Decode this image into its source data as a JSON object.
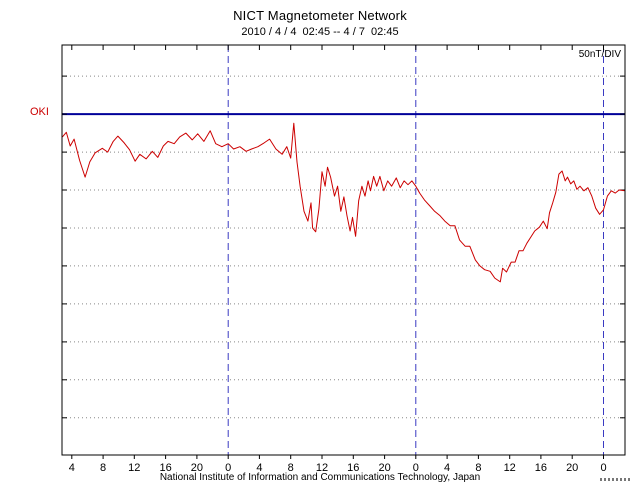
{
  "header": {
    "title": "NICT Magnetometer Network",
    "subtitle": "2010 / 4 / 4  02:45 -- 4 / 7  02:45"
  },
  "plot": {
    "scale_label": "50nT/DIV",
    "station_label": "OKI"
  },
  "footer": {
    "credit": "National Institute of Information and Communications Technology, Japan"
  },
  "colors": {
    "trace": "#cc0000",
    "baseline": "#000099",
    "day_line": "#3a3ac2",
    "grid": "#888888",
    "frame": "#000000"
  },
  "chart_data": {
    "type": "line",
    "title": "NICT Magnetometer Network",
    "subtitle": "2010 / 4 / 4  02:45 -- 4 / 7  02:45",
    "station": "OKI",
    "y_scale_label": "50nT/DIV",
    "y_division_nT": 50,
    "y_unit": "nT relative to OKI baseline",
    "x_unit": "hour of day, 2010-04-04 02:45 to 2010-04-07 02:45",
    "x_range": [
      2.75,
      74.75
    ],
    "ylim": [
      -449,
      91
    ],
    "grid_nT": [
      50,
      -50,
      -100,
      -150,
      -200,
      -250,
      -300,
      -350,
      -400
    ],
    "day_boundaries_h": [
      24,
      48,
      72
    ],
    "legend": "none",
    "x_ticks": [
      {
        "h": 4,
        "label": "4"
      },
      {
        "h": 8,
        "label": "8"
      },
      {
        "h": 12,
        "label": "12"
      },
      {
        "h": 16,
        "label": "16"
      },
      {
        "h": 20,
        "label": "20"
      },
      {
        "h": 24,
        "label": "0"
      },
      {
        "h": 28,
        "label": "4"
      },
      {
        "h": 32,
        "label": "8"
      },
      {
        "h": 36,
        "label": "12"
      },
      {
        "h": 40,
        "label": "16"
      },
      {
        "h": 44,
        "label": "20"
      },
      {
        "h": 48,
        "label": "0"
      },
      {
        "h": 52,
        "label": "4"
      },
      {
        "h": 56,
        "label": "8"
      },
      {
        "h": 60,
        "label": "12"
      },
      {
        "h": 64,
        "label": "16"
      },
      {
        "h": 68,
        "label": "20"
      },
      {
        "h": 72,
        "label": "0"
      }
    ],
    "series": [
      {
        "name": "OKI",
        "points": [
          [
            2.8,
            -30
          ],
          [
            3.3,
            -24
          ],
          [
            3.8,
            -42
          ],
          [
            4.3,
            -33
          ],
          [
            5.0,
            -61
          ],
          [
            5.7,
            -83
          ],
          [
            6.3,
            -63
          ],
          [
            7.0,
            -51
          ],
          [
            7.9,
            -45
          ],
          [
            8.6,
            -50
          ],
          [
            9.3,
            -36
          ],
          [
            9.9,
            -29
          ],
          [
            10.7,
            -38
          ],
          [
            11.4,
            -47
          ],
          [
            12.1,
            -62
          ],
          [
            12.7,
            -53
          ],
          [
            13.5,
            -59
          ],
          [
            14.3,
            -49
          ],
          [
            15.0,
            -57
          ],
          [
            15.7,
            -42
          ],
          [
            16.3,
            -36
          ],
          [
            17.1,
            -39
          ],
          [
            17.8,
            -30
          ],
          [
            18.6,
            -25
          ],
          [
            19.4,
            -34
          ],
          [
            20.1,
            -26
          ],
          [
            20.9,
            -36
          ],
          [
            21.7,
            -22
          ],
          [
            22.4,
            -39
          ],
          [
            23.2,
            -43
          ],
          [
            24.0,
            -39
          ],
          [
            24.7,
            -46
          ],
          [
            25.5,
            -43
          ],
          [
            26.3,
            -49
          ],
          [
            27.0,
            -46
          ],
          [
            27.8,
            -43
          ],
          [
            28.6,
            -38
          ],
          [
            29.3,
            -33
          ],
          [
            30.1,
            -46
          ],
          [
            30.9,
            -53
          ],
          [
            31.5,
            -43
          ],
          [
            32.0,
            -58
          ],
          [
            32.4,
            -12
          ],
          [
            32.8,
            -63
          ],
          [
            33.2,
            -95
          ],
          [
            33.7,
            -128
          ],
          [
            34.2,
            -141
          ],
          [
            34.6,
            -117
          ],
          [
            34.8,
            -150
          ],
          [
            35.2,
            -155
          ],
          [
            35.6,
            -125
          ],
          [
            36.0,
            -76
          ],
          [
            36.4,
            -95
          ],
          [
            36.7,
            -70
          ],
          [
            37.1,
            -83
          ],
          [
            37.6,
            -108
          ],
          [
            38.0,
            -95
          ],
          [
            38.4,
            -128
          ],
          [
            38.8,
            -109
          ],
          [
            39.2,
            -134
          ],
          [
            39.6,
            -154
          ],
          [
            39.9,
            -136
          ],
          [
            40.3,
            -161
          ],
          [
            40.7,
            -114
          ],
          [
            41.1,
            -95
          ],
          [
            41.5,
            -108
          ],
          [
            41.9,
            -88
          ],
          [
            42.2,
            -101
          ],
          [
            42.6,
            -82
          ],
          [
            43.0,
            -95
          ],
          [
            43.4,
            -82
          ],
          [
            43.9,
            -101
          ],
          [
            44.4,
            -88
          ],
          [
            44.9,
            -95
          ],
          [
            45.5,
            -84
          ],
          [
            46.0,
            -97
          ],
          [
            46.5,
            -88
          ],
          [
            47.0,
            -93
          ],
          [
            47.5,
            -88
          ],
          [
            48.0,
            -95
          ],
          [
            48.5,
            -104
          ],
          [
            49.1,
            -113
          ],
          [
            49.8,
            -121
          ],
          [
            50.4,
            -128
          ],
          [
            51.1,
            -134
          ],
          [
            51.7,
            -141
          ],
          [
            52.4,
            -147
          ],
          [
            53.0,
            -147
          ],
          [
            53.6,
            -166
          ],
          [
            54.3,
            -174
          ],
          [
            54.9,
            -174
          ],
          [
            55.6,
            -192
          ],
          [
            56.2,
            -200
          ],
          [
            56.8,
            -205
          ],
          [
            57.5,
            -207
          ],
          [
            58.1,
            -216
          ],
          [
            58.8,
            -221
          ],
          [
            59.1,
            -203
          ],
          [
            59.6,
            -208
          ],
          [
            60.2,
            -195
          ],
          [
            60.7,
            -195
          ],
          [
            61.2,
            -180
          ],
          [
            61.7,
            -180
          ],
          [
            62.2,
            -170
          ],
          [
            62.7,
            -162
          ],
          [
            63.2,
            -154
          ],
          [
            63.8,
            -149
          ],
          [
            64.3,
            -141
          ],
          [
            64.8,
            -151
          ],
          [
            65.1,
            -130
          ],
          [
            65.5,
            -117
          ],
          [
            65.9,
            -103
          ],
          [
            66.3,
            -79
          ],
          [
            66.7,
            -75
          ],
          [
            67.1,
            -88
          ],
          [
            67.4,
            -83
          ],
          [
            67.8,
            -92
          ],
          [
            68.2,
            -88
          ],
          [
            68.6,
            -99
          ],
          [
            69.0,
            -95
          ],
          [
            69.5,
            -101
          ],
          [
            70.0,
            -97
          ],
          [
            70.5,
            -108
          ],
          [
            71.0,
            -124
          ],
          [
            71.5,
            -132
          ],
          [
            72.0,
            -126
          ],
          [
            72.5,
            -108
          ],
          [
            73.0,
            -101
          ],
          [
            73.5,
            -104
          ],
          [
            74.0,
            -100
          ],
          [
            74.75,
            -101
          ]
        ]
      }
    ]
  }
}
